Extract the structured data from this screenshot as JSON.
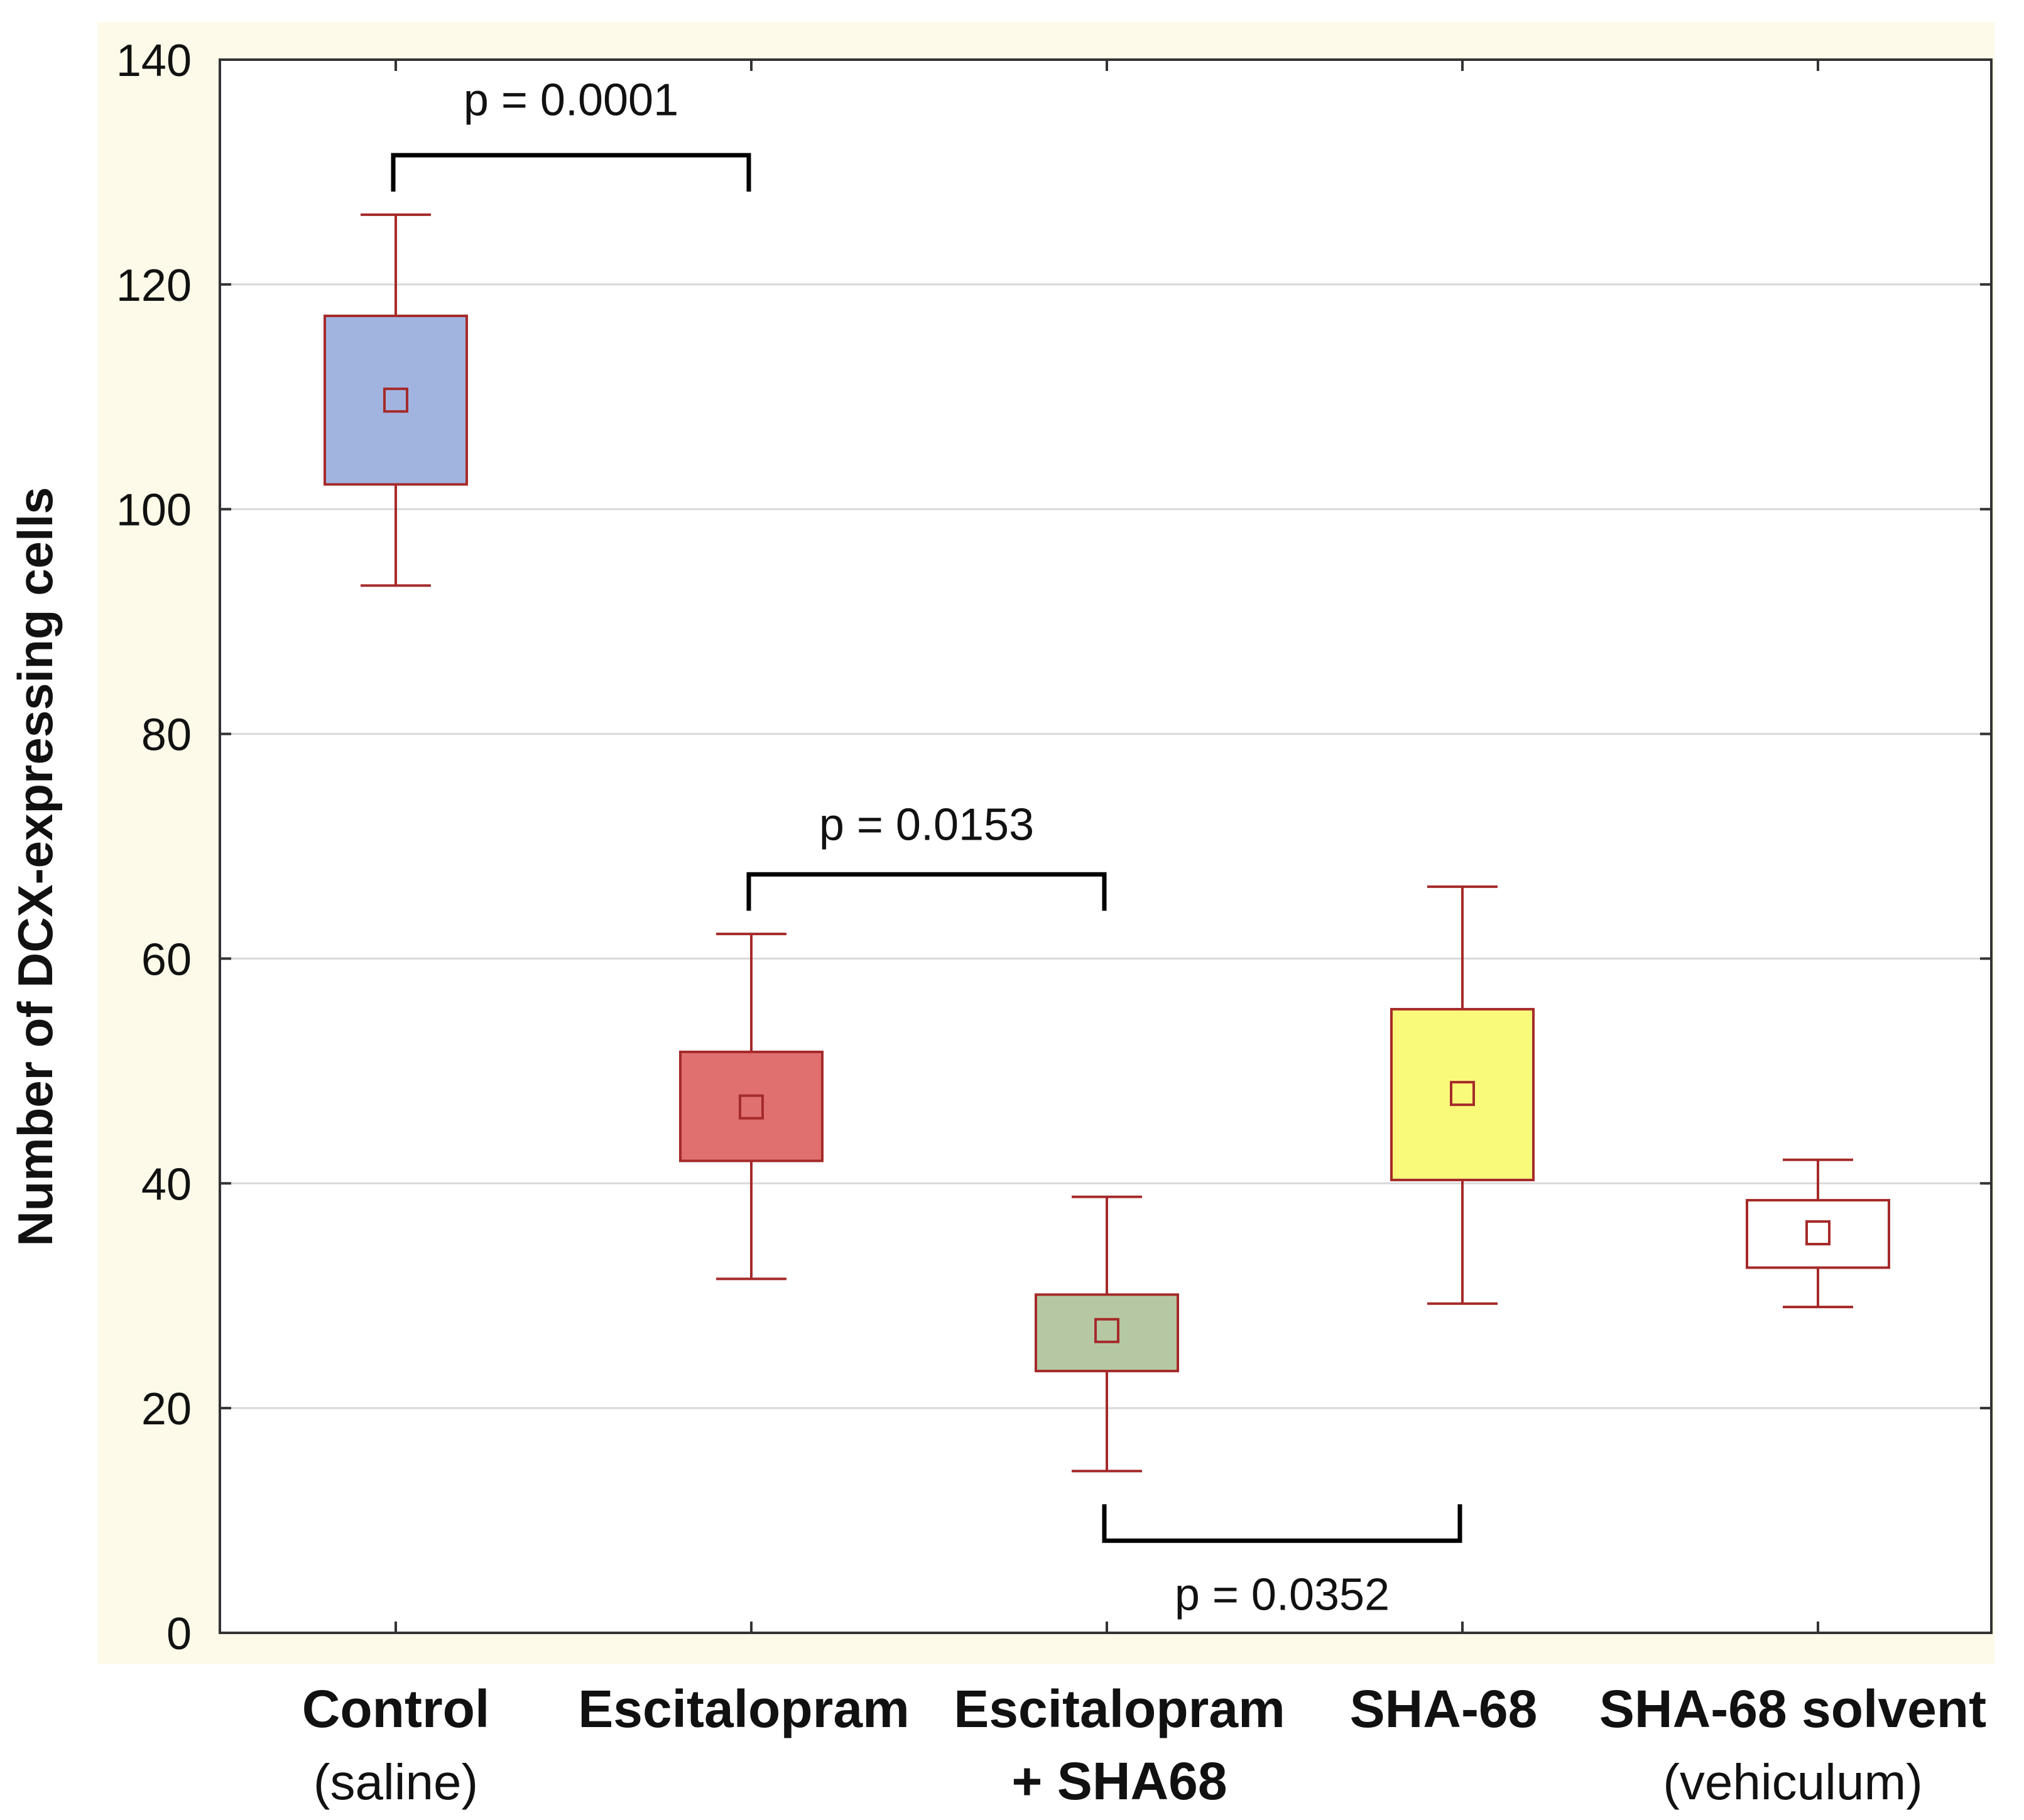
{
  "chart_data": {
    "type": "box",
    "title": "",
    "xlabel": "",
    "ylabel": "Number of DCX-expressing cells",
    "ylim": [
      0,
      140
    ],
    "yticks": [
      0,
      20,
      40,
      60,
      80,
      100,
      120,
      140
    ],
    "grid": true,
    "categories": [
      {
        "name": "Control",
        "sub": "(saline)",
        "mean": 109.7,
        "box": [
          102.2,
          117.2
        ],
        "whisker": [
          93.2,
          126.2
        ],
        "fill": "#a1b4e0"
      },
      {
        "name": "Escitalopram",
        "sub": "",
        "mean": 46.8,
        "box": [
          42.0,
          51.7
        ],
        "whisker": [
          31.5,
          62.2
        ],
        "fill": "#e07070"
      },
      {
        "name": "Escitalopram",
        "sub": "+ SHA68",
        "mean": 26.9,
        "box": [
          23.3,
          30.1
        ],
        "whisker": [
          14.4,
          38.8
        ],
        "fill": "#b5c8a3"
      },
      {
        "name": "SHA-68",
        "sub": "",
        "mean": 48.0,
        "box": [
          40.3,
          55.5
        ],
        "whisker": [
          29.3,
          66.4
        ],
        "fill": "#fafa7a"
      },
      {
        "name": "SHA-68 solvent",
        "sub": "(vehiculum)",
        "mean": 35.6,
        "box": [
          32.5,
          38.5
        ],
        "whisker": [
          29.0,
          42.1
        ],
        "fill": "#ffffff"
      }
    ],
    "annotations": [
      {
        "label": "p = 0.0001",
        "from": 0,
        "to": 1,
        "y": 131.5,
        "direction": "down",
        "text_y": 136.5
      },
      {
        "label": "p = 0.0153",
        "from": 1,
        "to": 2,
        "y": 67.5,
        "direction": "down",
        "text_y": 72.0
      },
      {
        "label": "p = 0.0352",
        "from": 2,
        "to": 3,
        "y": 8.2,
        "direction": "up",
        "text_y": 3.5
      }
    ]
  }
}
